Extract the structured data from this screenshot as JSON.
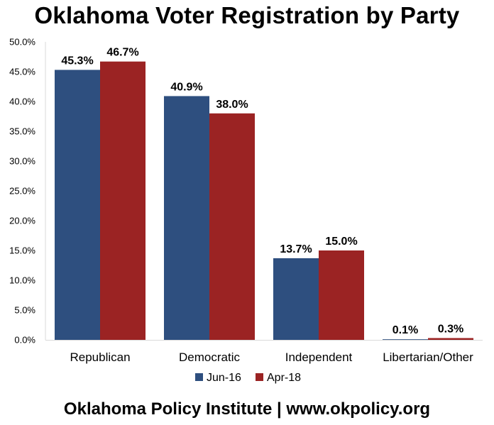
{
  "title": "Oklahoma Voter Registration by Party",
  "footer": "Oklahoma Policy Institute | www.okpolicy.org",
  "chart_data": {
    "type": "bar",
    "title": "Oklahoma Voter Registration by Party",
    "categories": [
      "Republican",
      "Democratic",
      "Independent",
      "Libertarian/Other"
    ],
    "series": [
      {
        "name": "Jun-16",
        "color": "#2e4f7f",
        "values": [
          45.3,
          40.9,
          13.7,
          0.1
        ],
        "labels": [
          "45.3%",
          "40.9%",
          "13.7%",
          "0.1%"
        ]
      },
      {
        "name": "Apr-18",
        "color": "#9b2323",
        "values": [
          46.7,
          38.0,
          15.0,
          0.3
        ],
        "labels": [
          "46.7%",
          "38.0%",
          "15.0%",
          "0.3%"
        ]
      }
    ],
    "ylim": [
      0,
      50
    ],
    "yticks": [
      "0.0%",
      "5.0%",
      "10.0%",
      "15.0%",
      "20.0%",
      "25.0%",
      "30.0%",
      "35.0%",
      "40.0%",
      "45.0%",
      "50.0%"
    ],
    "grid": false,
    "legend_position": "bottom"
  }
}
